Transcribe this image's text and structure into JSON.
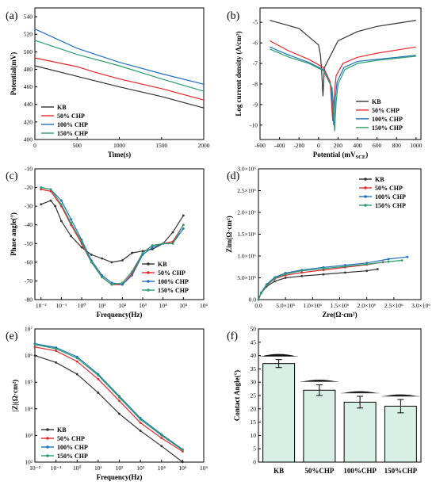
{
  "colors": {
    "KB": "#333333",
    "CHP50": "#e8262a",
    "CHP100": "#1f6fbf",
    "CHP150": "#2a9d6a",
    "bar_fill": "#d8efe6",
    "drop": "#111111"
  },
  "chart_data": [
    {
      "id": "a",
      "panel_label": "(a)",
      "type": "line",
      "xlabel": "Time(s)",
      "ylabel": "Potential(mV)",
      "xlim": [
        0,
        2000
      ],
      "ylim": [
        400,
        550
      ],
      "xticks": [
        0,
        500,
        1000,
        1500,
        2000
      ],
      "yticks": [
        400,
        420,
        440,
        460,
        480,
        500,
        520,
        540
      ],
      "legend_position": "bottom-left",
      "series": [
        {
          "name": "KB",
          "color_key": "KB",
          "x": [
            0,
            500,
            1000,
            1500,
            2000
          ],
          "y": [
            484,
            472,
            460,
            449,
            436
          ]
        },
        {
          "name": "50% CHP",
          "color_key": "CHP50",
          "x": [
            0,
            500,
            700,
            1000,
            1500,
            2000
          ],
          "y": [
            493,
            483,
            477,
            469,
            458,
            445
          ]
        },
        {
          "name": "100% CHP",
          "color_key": "CHP100",
          "x": [
            0,
            500,
            1000,
            1500,
            2000
          ],
          "y": [
            526,
            504,
            488,
            475,
            463
          ]
        },
        {
          "name": "150% CHP",
          "color_key": "CHP150",
          "x": [
            0,
            500,
            1000,
            1500,
            2000
          ],
          "y": [
            513,
            497,
            484,
            469,
            455
          ]
        }
      ]
    },
    {
      "id": "b",
      "panel_label": "(b)",
      "type": "line",
      "xlabel": "Potential (mV",
      "xlabel_sub": "SCE",
      "xlabel_end": ")",
      "ylabel": "Log current density (A/cm²)",
      "xlim": [
        -600,
        1050
      ],
      "ylim": [
        -10.7,
        -4.3
      ],
      "xticks": [
        -600,
        -400,
        -200,
        0,
        200,
        400,
        600,
        800,
        1000
      ],
      "yticks": [
        -10,
        -9,
        -8,
        -7,
        -6,
        -5
      ],
      "legend_position": "right",
      "series": [
        {
          "name": "KB",
          "color_key": "KB",
          "x": [
            -500,
            -200,
            0,
            20,
            35,
            45,
            60,
            200,
            400,
            600,
            800,
            1000
          ],
          "y": [
            -4.9,
            -5.3,
            -6.1,
            -6.6,
            -7.6,
            -8.6,
            -7.2,
            -5.9,
            -5.45,
            -5.2,
            -5.05,
            -4.9
          ]
        },
        {
          "name": "50% CHP",
          "color_key": "CHP50",
          "x": [
            -500,
            -300,
            -100,
            50,
            120,
            145,
            160,
            180,
            250,
            400,
            600,
            800,
            1000
          ],
          "y": [
            -5.9,
            -6.4,
            -6.8,
            -7.2,
            -7.9,
            -9.8,
            -8.6,
            -7.6,
            -7.0,
            -6.7,
            -6.5,
            -6.35,
            -6.2
          ]
        },
        {
          "name": "100% CHP",
          "color_key": "CHP100",
          "x": [
            -500,
            -300,
            -100,
            50,
            130,
            155,
            170,
            190,
            260,
            400,
            600,
            800,
            1000
          ],
          "y": [
            -6.2,
            -6.6,
            -6.95,
            -7.3,
            -8.1,
            -10.0,
            -8.8,
            -7.9,
            -7.2,
            -6.9,
            -6.8,
            -6.7,
            -6.6
          ]
        },
        {
          "name": "150% CHP",
          "color_key": "CHP150",
          "x": [
            -500,
            -300,
            -100,
            50,
            140,
            165,
            180,
            200,
            270,
            400,
            600,
            800,
            1000
          ],
          "y": [
            -6.3,
            -6.7,
            -7.0,
            -7.35,
            -8.2,
            -10.3,
            -8.9,
            -8.0,
            -7.3,
            -7.0,
            -6.85,
            -6.75,
            -6.65
          ]
        }
      ]
    },
    {
      "id": "c",
      "panel_label": "(c)",
      "type": "line",
      "xscale": "log",
      "xlabel": "Frequency(Hz)",
      "ylabel": "Phase angle(°)",
      "xlim": [
        0.005,
        1000000
      ],
      "ylim": [
        -80,
        -10
      ],
      "xticks": [
        0.01,
        0.1,
        1,
        10,
        100,
        1000,
        10000,
        100000,
        1000000
      ],
      "xticklabels": [
        "10⁻²",
        "10⁻¹",
        "10⁰",
        "10¹",
        "10²",
        "10³",
        "10⁴",
        "10⁵",
        "10⁶"
      ],
      "yticks": [
        -80,
        -70,
        -60,
        -50,
        -40,
        -30,
        -20,
        -10
      ],
      "legend_position": "bottom-right",
      "series": [
        {
          "name": "KB",
          "color_key": "KB",
          "x": [
            0.01,
            0.03,
            0.05,
            0.1,
            0.3,
            1,
            3,
            10,
            30,
            100,
            300,
            1000,
            3000,
            10000,
            30000,
            100000
          ],
          "y": [
            -29,
            -27,
            -30,
            -38,
            -46,
            -52,
            -56,
            -58,
            -60,
            -59,
            -55,
            -54,
            -53,
            -50,
            -44,
            -35
          ]
        },
        {
          "name": "50% CHP",
          "color_key": "CHP50",
          "x": [
            0.01,
            0.03,
            0.1,
            0.3,
            1,
            3,
            10,
            30,
            100,
            300,
            1000,
            3000,
            10000,
            30000,
            100000
          ],
          "y": [
            -21,
            -22,
            -30,
            -40,
            -50,
            -60,
            -68,
            -72,
            -72,
            -66,
            -55,
            -51,
            -50,
            -49,
            -40
          ]
        },
        {
          "name": "100% CHP",
          "color_key": "CHP100",
          "x": [
            0.01,
            0.03,
            0.1,
            0.3,
            1,
            3,
            10,
            30,
            100,
            300,
            1000,
            3000,
            10000,
            30000,
            100000
          ],
          "y": [
            -20,
            -21,
            -27,
            -37,
            -48,
            -59,
            -67,
            -71,
            -72,
            -67,
            -56,
            -52,
            -50,
            -50,
            -42
          ]
        },
        {
          "name": "150% CHP",
          "color_key": "CHP150",
          "x": [
            0.01,
            0.03,
            0.1,
            0.3,
            1,
            3,
            10,
            30,
            100,
            300,
            1000,
            3000,
            10000,
            30000,
            100000
          ],
          "y": [
            -20,
            -21,
            -29,
            -39,
            -49,
            -60,
            -68,
            -72,
            -71,
            -65,
            -55,
            -51,
            -50,
            -50,
            -40
          ]
        }
      ]
    },
    {
      "id": "d",
      "panel_label": "(d)",
      "type": "scatter",
      "xlabel": "Zre(Ω·cm²)",
      "ylabel": "Zim(Ω·cm²)",
      "xlim": [
        0,
        3000000
      ],
      "ylim": [
        0,
        3000000
      ],
      "xticks": [
        0,
        500000,
        1000000,
        1500000,
        2000000,
        2500000,
        3000000
      ],
      "xticklabels": [
        "0.0",
        "5.0×10⁵",
        "1.0×10⁶",
        "1.5×10⁶",
        "2.0×10⁶",
        "2.5×10⁶",
        "3.0×10⁶"
      ],
      "yticks": [
        0,
        500000,
        1000000,
        1500000,
        2000000,
        2500000,
        3000000
      ],
      "yticklabels": [
        "0.0",
        "5.0×10⁵",
        "1.0×10⁶",
        "1.5×10⁶",
        "2.0×10⁶",
        "2.5×10⁶",
        "3.0×10⁶"
      ],
      "legend_position": "top-right",
      "series": [
        {
          "name": "KB",
          "color_key": "KB",
          "x": [
            0,
            50000,
            150000,
            300000,
            500000,
            800000,
            1200000,
            1600000,
            2000000,
            2200000
          ],
          "y": [
            0,
            150000,
            300000,
            420000,
            500000,
            540000,
            580000,
            620000,
            660000,
            700000
          ]
        },
        {
          "name": "50% CHP",
          "color_key": "CHP50",
          "x": [
            0,
            50000,
            150000,
            300000,
            500000,
            800000,
            1200000,
            1600000,
            2000000,
            2300000
          ],
          "y": [
            0,
            150000,
            320000,
            480000,
            560000,
            620000,
            680000,
            740000,
            800000,
            860000
          ]
        },
        {
          "name": "100% CHP",
          "color_key": "CHP100",
          "x": [
            0,
            50000,
            150000,
            300000,
            500000,
            800000,
            1200000,
            1600000,
            2000000,
            2400000,
            2750000
          ],
          "y": [
            0,
            160000,
            350000,
            510000,
            610000,
            680000,
            740000,
            790000,
            840000,
            930000,
            980000
          ]
        },
        {
          "name": "150% CHP",
          "color_key": "CHP150",
          "x": [
            0,
            50000,
            150000,
            300000,
            500000,
            800000,
            1200000,
            1600000,
            2000000,
            2400000,
            2650000
          ],
          "y": [
            0,
            150000,
            330000,
            490000,
            590000,
            660000,
            710000,
            760000,
            810000,
            870000,
            900000
          ]
        }
      ]
    },
    {
      "id": "e",
      "panel_label": "(e)",
      "type": "line",
      "xscale": "log",
      "yscale": "log",
      "xlabel": "Frequency(Hz)",
      "ylabel": "|Z|(Ω·cm²)",
      "xlim": [
        0.01,
        1000000
      ],
      "ylim": [
        100,
        10000000
      ],
      "xticks": [
        0.01,
        0.1,
        1,
        10,
        100,
        1000,
        10000,
        100000,
        1000000
      ],
      "xticklabels": [
        "10⁻²",
        "10⁻¹",
        "10⁰",
        "10¹",
        "10²",
        "10³",
        "10⁴",
        "10⁵",
        "10⁶"
      ],
      "yticks": [
        100,
        1000,
        10000,
        100000,
        1000000,
        10000000
      ],
      "yticklabels": [
        "10²",
        "10³",
        "10⁴",
        "10⁵",
        "10⁶",
        "10⁷"
      ],
      "legend_position": "bottom-left",
      "series": [
        {
          "name": "KB",
          "color_key": "KB",
          "x": [
            0.01,
            0.1,
            1,
            10,
            100,
            1000,
            10000,
            100000
          ],
          "y": [
            1000000,
            550000,
            200000,
            40000,
            6500,
            1500,
            400,
            100
          ]
        },
        {
          "name": "50% CHP",
          "color_key": "CHP50",
          "x": [
            0.01,
            0.1,
            1,
            10,
            100,
            1000,
            10000,
            100000
          ],
          "y": [
            2100000,
            1500000,
            600000,
            130000,
            20000,
            3000,
            800,
            250
          ]
        },
        {
          "name": "100% CHP",
          "color_key": "CHP100",
          "x": [
            0.01,
            0.1,
            1,
            10,
            100,
            1000,
            10000,
            100000
          ],
          "y": [
            2800000,
            2000000,
            900000,
            200000,
            30000,
            4500,
            1100,
            300
          ]
        },
        {
          "name": "150% CHP",
          "color_key": "CHP150",
          "x": [
            0.01,
            0.1,
            1,
            10,
            100,
            1000,
            10000,
            100000
          ],
          "y": [
            2600000,
            1800000,
            800000,
            180000,
            27000,
            4000,
            1000,
            280
          ]
        }
      ]
    },
    {
      "id": "f",
      "panel_label": "(f)",
      "type": "bar",
      "xlabel": "",
      "ylabel": "Contact Angle(°)",
      "categories": [
        "KB",
        "50%CHP",
        "100%CHP",
        "150%CHP"
      ],
      "values": [
        37,
        27,
        22.5,
        21
      ],
      "errors": [
        1.5,
        2,
        2.2,
        2.5
      ],
      "ylim": [
        0,
        50
      ],
      "yticks": [
        0,
        5,
        10,
        15,
        20,
        25,
        30,
        35,
        40,
        45,
        50
      ]
    }
  ]
}
